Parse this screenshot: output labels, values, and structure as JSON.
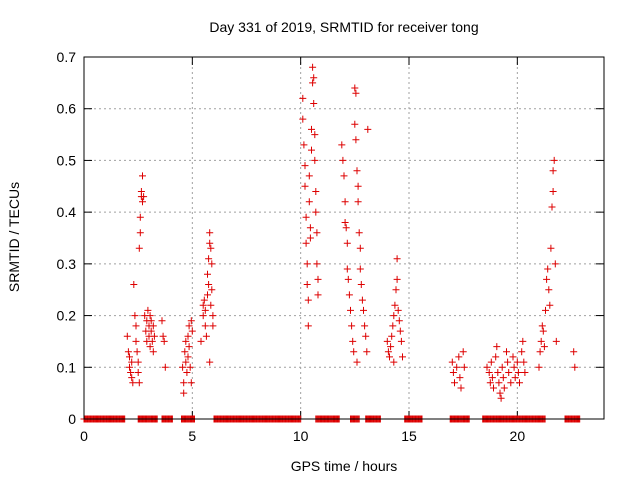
{
  "chart_data": {
    "type": "scatter",
    "title": "Day 331 of 2019, SRMTID for receiver tong",
    "xlabel": "GPS time / hours",
    "ylabel": "SRMTID / TECUs",
    "xlim": [
      0,
      24
    ],
    "ylim": [
      0,
      0.7
    ],
    "xticks": [
      0,
      5,
      10,
      15,
      20
    ],
    "xtick_labels": [
      "0",
      "5",
      "10",
      "15",
      "20"
    ],
    "yticks": [
      0,
      0.1,
      0.2,
      0.3,
      0.4,
      0.5,
      0.6,
      0.7
    ],
    "ytick_labels": [
      "0",
      "0.1",
      "0.2",
      "0.3",
      "0.4",
      "0.5",
      "0.6",
      "0.7"
    ],
    "grid": true,
    "marker": "plus",
    "color": "#dd0000",
    "series": [
      {
        "name": "SRMTID",
        "points": [
          [
            2.0,
            0.16
          ],
          [
            2.05,
            0.13
          ],
          [
            2.1,
            0.12
          ],
          [
            2.1,
            0.1
          ],
          [
            2.15,
            0.09
          ],
          [
            2.2,
            0.11
          ],
          [
            2.2,
            0.08
          ],
          [
            2.25,
            0.07
          ],
          [
            2.3,
            0.26
          ],
          [
            2.35,
            0.2
          ],
          [
            2.4,
            0.18
          ],
          [
            2.4,
            0.15
          ],
          [
            2.45,
            0.13
          ],
          [
            2.5,
            0.11
          ],
          [
            2.5,
            0.09
          ],
          [
            2.55,
            0.07
          ],
          [
            2.55,
            0.33
          ],
          [
            2.6,
            0.36
          ],
          [
            2.6,
            0.39
          ],
          [
            2.65,
            0.43
          ],
          [
            2.65,
            0.44
          ],
          [
            2.7,
            0.47
          ],
          [
            2.7,
            0.42
          ],
          [
            2.75,
            0.43
          ],
          [
            2.8,
            0.2
          ],
          [
            2.85,
            0.17
          ],
          [
            2.9,
            0.19
          ],
          [
            2.9,
            0.15
          ],
          [
            2.95,
            0.21
          ],
          [
            3.0,
            0.18
          ],
          [
            3.0,
            0.16
          ],
          [
            3.05,
            0.14
          ],
          [
            3.05,
            0.2
          ],
          [
            3.1,
            0.17
          ],
          [
            3.1,
            0.19
          ],
          [
            3.15,
            0.15
          ],
          [
            3.2,
            0.18
          ],
          [
            3.2,
            0.13
          ],
          [
            3.25,
            0.16
          ],
          [
            3.6,
            0.19
          ],
          [
            3.65,
            0.16
          ],
          [
            3.7,
            0.15
          ],
          [
            3.75,
            0.1
          ],
          [
            4.55,
            0.1
          ],
          [
            4.6,
            0.07
          ],
          [
            4.6,
            0.05
          ],
          [
            4.65,
            0.13
          ],
          [
            4.7,
            0.15
          ],
          [
            4.7,
            0.11
          ],
          [
            4.75,
            0.09
          ],
          [
            4.8,
            0.12
          ],
          [
            4.8,
            0.16
          ],
          [
            4.85,
            0.18
          ],
          [
            4.85,
            0.14
          ],
          [
            4.9,
            0.1
          ],
          [
            4.95,
            0.07
          ],
          [
            4.95,
            0.19
          ],
          [
            5.0,
            0.17
          ],
          [
            5.4,
            0.15
          ],
          [
            5.5,
            0.2
          ],
          [
            5.5,
            0.22
          ],
          [
            5.55,
            0.23
          ],
          [
            5.6,
            0.21
          ],
          [
            5.6,
            0.18
          ],
          [
            5.65,
            0.16
          ],
          [
            5.7,
            0.24
          ],
          [
            5.7,
            0.28
          ],
          [
            5.75,
            0.31
          ],
          [
            5.75,
            0.26
          ],
          [
            5.8,
            0.34
          ],
          [
            5.8,
            0.36
          ],
          [
            5.85,
            0.33
          ],
          [
            5.85,
            0.22
          ],
          [
            5.9,
            0.3
          ],
          [
            5.9,
            0.25
          ],
          [
            5.95,
            0.2
          ],
          [
            5.95,
            0.18
          ],
          [
            5.8,
            0.11
          ],
          [
            10.1,
            0.62
          ],
          [
            10.1,
            0.58
          ],
          [
            10.15,
            0.53
          ],
          [
            10.2,
            0.49
          ],
          [
            10.2,
            0.45
          ],
          [
            10.25,
            0.39
          ],
          [
            10.25,
            0.34
          ],
          [
            10.3,
            0.3
          ],
          [
            10.3,
            0.26
          ],
          [
            10.35,
            0.23
          ],
          [
            10.35,
            0.18
          ],
          [
            10.4,
            0.47
          ],
          [
            10.4,
            0.42
          ],
          [
            10.45,
            0.37
          ],
          [
            10.45,
            0.35
          ],
          [
            10.5,
            0.56
          ],
          [
            10.5,
            0.52
          ],
          [
            10.55,
            0.68
          ],
          [
            10.55,
            0.65
          ],
          [
            10.6,
            0.66
          ],
          [
            10.6,
            0.61
          ],
          [
            10.65,
            0.55
          ],
          [
            10.65,
            0.5
          ],
          [
            10.7,
            0.44
          ],
          [
            10.7,
            0.4
          ],
          [
            10.75,
            0.36
          ],
          [
            10.75,
            0.3
          ],
          [
            10.8,
            0.27
          ],
          [
            10.8,
            0.24
          ],
          [
            11.9,
            0.53
          ],
          [
            11.95,
            0.5
          ],
          [
            12.0,
            0.47
          ],
          [
            12.05,
            0.42
          ],
          [
            12.05,
            0.38
          ],
          [
            12.1,
            0.37
          ],
          [
            12.15,
            0.34
          ],
          [
            12.15,
            0.29
          ],
          [
            12.2,
            0.27
          ],
          [
            12.25,
            0.24
          ],
          [
            12.3,
            0.21
          ],
          [
            12.35,
            0.18
          ],
          [
            12.4,
            0.15
          ],
          [
            12.45,
            0.13
          ],
          [
            12.5,
            0.64
          ],
          [
            12.55,
            0.63
          ],
          [
            12.5,
            0.57
          ],
          [
            12.55,
            0.54
          ],
          [
            12.6,
            0.48
          ],
          [
            12.65,
            0.45
          ],
          [
            12.65,
            0.42
          ],
          [
            12.7,
            0.36
          ],
          [
            12.75,
            0.33
          ],
          [
            12.75,
            0.29
          ],
          [
            12.8,
            0.26
          ],
          [
            12.85,
            0.23
          ],
          [
            12.9,
            0.21
          ],
          [
            12.95,
            0.18
          ],
          [
            13.0,
            0.16
          ],
          [
            13.05,
            0.13
          ],
          [
            13.1,
            0.56
          ],
          [
            12.6,
            0.11
          ],
          [
            14.0,
            0.15
          ],
          [
            14.05,
            0.13
          ],
          [
            14.1,
            0.12
          ],
          [
            14.15,
            0.14
          ],
          [
            14.2,
            0.16
          ],
          [
            14.25,
            0.18
          ],
          [
            14.3,
            0.2
          ],
          [
            14.35,
            0.22
          ],
          [
            14.4,
            0.25
          ],
          [
            14.45,
            0.31
          ],
          [
            14.45,
            0.27
          ],
          [
            14.5,
            0.21
          ],
          [
            14.55,
            0.19
          ],
          [
            14.6,
            0.17
          ],
          [
            14.65,
            0.15
          ],
          [
            14.7,
            0.12
          ],
          [
            14.3,
            0.11
          ],
          [
            17.0,
            0.11
          ],
          [
            17.05,
            0.09
          ],
          [
            17.1,
            0.07
          ],
          [
            17.2,
            0.1
          ],
          [
            17.3,
            0.12
          ],
          [
            17.35,
            0.08
          ],
          [
            17.4,
            0.06
          ],
          [
            17.5,
            0.13
          ],
          [
            17.55,
            0.1
          ],
          [
            18.6,
            0.1
          ],
          [
            18.7,
            0.09
          ],
          [
            18.75,
            0.07
          ],
          [
            18.8,
            0.11
          ],
          [
            18.85,
            0.08
          ],
          [
            18.9,
            0.06
          ],
          [
            19.0,
            0.12
          ],
          [
            19.05,
            0.14
          ],
          [
            19.1,
            0.09
          ],
          [
            19.15,
            0.07
          ],
          [
            19.2,
            0.05
          ],
          [
            19.25,
            0.04
          ],
          [
            19.3,
            0.1
          ],
          [
            19.35,
            0.08
          ],
          [
            19.4,
            0.06
          ],
          [
            19.5,
            0.13
          ],
          [
            19.55,
            0.11
          ],
          [
            19.6,
            0.09
          ],
          [
            19.7,
            0.07
          ],
          [
            19.8,
            0.12
          ],
          [
            19.85,
            0.1
          ],
          [
            19.9,
            0.08
          ],
          [
            20.0,
            0.11
          ],
          [
            20.05,
            0.09
          ],
          [
            20.1,
            0.07
          ],
          [
            20.2,
            0.13
          ],
          [
            20.25,
            0.15
          ],
          [
            20.3,
            0.11
          ],
          [
            20.35,
            0.09
          ],
          [
            21.0,
            0.1
          ],
          [
            21.05,
            0.13
          ],
          [
            21.1,
            0.15
          ],
          [
            21.15,
            0.18
          ],
          [
            21.2,
            0.17
          ],
          [
            21.25,
            0.14
          ],
          [
            21.3,
            0.21
          ],
          [
            21.35,
            0.27
          ],
          [
            21.4,
            0.29
          ],
          [
            21.45,
            0.25
          ],
          [
            21.5,
            0.22
          ],
          [
            21.55,
            0.33
          ],
          [
            21.6,
            0.41
          ],
          [
            21.65,
            0.44
          ],
          [
            21.65,
            0.48
          ],
          [
            21.7,
            0.5
          ],
          [
            21.75,
            0.3
          ],
          [
            21.8,
            0.15
          ],
          [
            22.6,
            0.13
          ],
          [
            22.65,
            0.1
          ]
        ],
        "zero_runs": [
          [
            0.0,
            1.9
          ],
          [
            2.5,
            3.4
          ],
          [
            3.6,
            4.1
          ],
          [
            4.5,
            5.1
          ],
          [
            6.0,
            10.0
          ],
          [
            10.7,
            11.8
          ],
          [
            12.3,
            12.7
          ],
          [
            13.0,
            13.7
          ],
          [
            14.8,
            15.6
          ],
          [
            16.9,
            17.8
          ],
          [
            18.4,
            21.3
          ],
          [
            22.2,
            22.9
          ]
        ]
      }
    ]
  }
}
